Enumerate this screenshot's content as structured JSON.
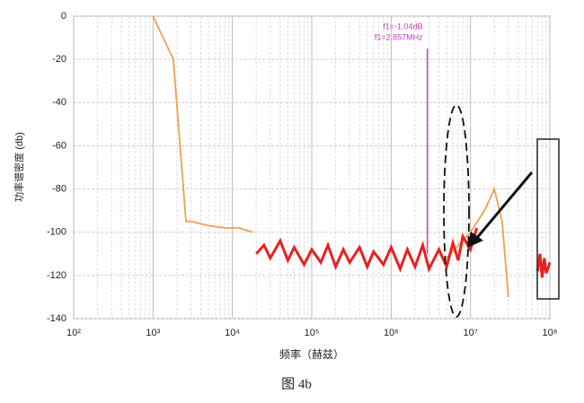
{
  "chart_data": {
    "type": "line",
    "xscale": "log",
    "ylabel": "功率谱密度 (db)",
    "xlabel": "频率（赫兹）",
    "caption": "图 4b",
    "xlim": [
      100,
      100000000
    ],
    "ylim": [
      -140,
      0
    ],
    "xticks": [
      {
        "value": 100,
        "label": "10²"
      },
      {
        "value": 1000,
        "label": "10³"
      },
      {
        "value": 10000,
        "label": "10⁴"
      },
      {
        "value": 100000,
        "label": "10⁵"
      },
      {
        "value": 1000000,
        "label": "10⁶"
      },
      {
        "value": 10000000,
        "label": "10⁷"
      },
      {
        "value": 100000000,
        "label": "10⁸"
      }
    ],
    "yticks": [
      0,
      -20,
      -40,
      -60,
      -80,
      -100,
      -120,
      -140
    ],
    "grid": true,
    "minor_grid": true,
    "series": [
      {
        "color": "#f0a050",
        "x": [
          1000,
          1800,
          2600,
          3000,
          5000,
          8000,
          12000,
          18000,
          20000,
          5000000,
          10000000,
          15000000,
          20000000,
          25000000,
          30000000
        ],
        "values": [
          0,
          -20,
          -95,
          -95,
          -97,
          -98,
          -98,
          -100,
          null,
          -112,
          -100,
          -90,
          -80,
          -95,
          -130
        ]
      },
      {
        "color": "#e82020",
        "x": [
          20000,
          25000,
          30000,
          40000,
          50000,
          60000,
          80000,
          100000,
          130000,
          160000,
          200000,
          250000,
          300000,
          400000,
          500000,
          600000,
          800000,
          1000000,
          1300000,
          1600000,
          2000000,
          2500000,
          3000000,
          4000000,
          5000000,
          6000000,
          7000000,
          8000000,
          10000000,
          12000000,
          20000000,
          70000000,
          75000000,
          80000000,
          85000000,
          90000000,
          100000000
        ],
        "values": [
          -110,
          -106,
          -112,
          -104,
          -113,
          -107,
          -115,
          -108,
          -114,
          -106,
          -116,
          -108,
          -114,
          -107,
          -116,
          -109,
          -115,
          -107,
          -117,
          -108,
          -116,
          -106,
          -117,
          -108,
          -116,
          -105,
          -113,
          -102,
          -108,
          -98,
          null,
          -118,
          -110,
          -121,
          -112,
          -119,
          -114
        ]
      }
    ],
    "markers": [
      {
        "x": 2857000,
        "color": "#c040c0",
        "top": -15,
        "bottom": -110
      }
    ],
    "annotations": [
      "f1=-1.04dB",
      "f1=2.857MHz"
    ]
  }
}
